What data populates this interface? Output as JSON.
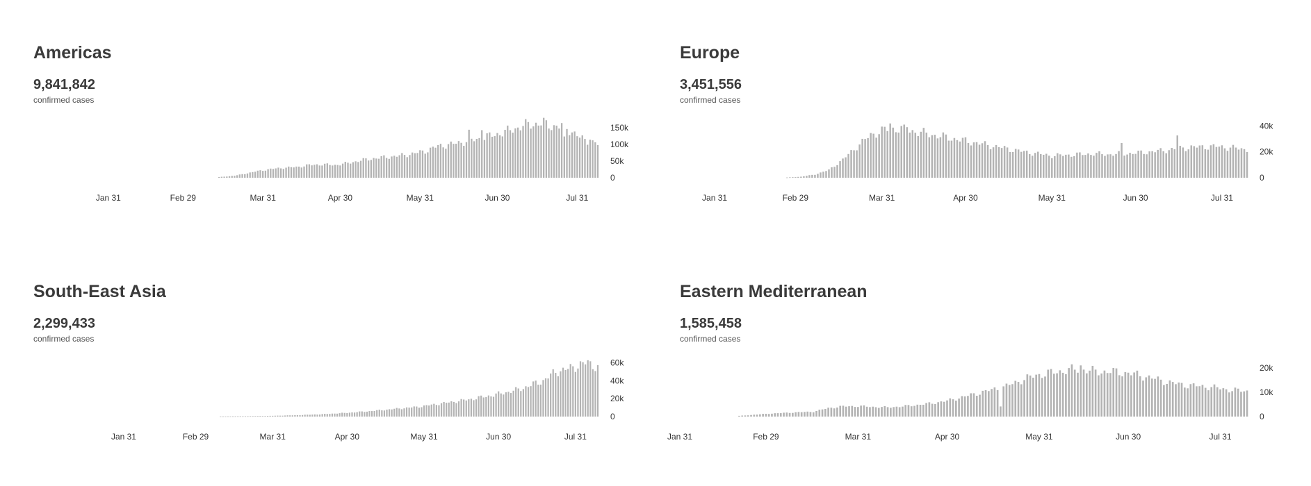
{
  "colors": {
    "bar": "#b3b3b3",
    "text": "#3a3a3a"
  },
  "chart_data": [
    {
      "type": "bar",
      "title": "Americas",
      "total": "9,841,842",
      "caption": "confirmed cases",
      "x_ticks": [
        "Jan 31",
        "Feb 29",
        "Mar 31",
        "Apr 30",
        "May 31",
        "Jun 30",
        "Jul 31"
      ],
      "y_ticks": [
        "0",
        "50k",
        "100k",
        "150k"
      ],
      "ylim": [
        0,
        175000
      ],
      "grid": false,
      "x_range": [
        "Jan 10",
        "Aug 8"
      ],
      "series": [
        {
          "x_start": "Mar 14",
          "x_end": "Aug 8",
          "anchors": [
            [
              0,
              2000
            ],
            [
              6,
              6000
            ],
            [
              10,
              12000
            ],
            [
              15,
              20000
            ],
            [
              20,
              26000
            ],
            [
              25,
              30000
            ],
            [
              30,
              32000
            ],
            [
              35,
              38000
            ],
            [
              40,
              40000
            ],
            [
              45,
              38000
            ],
            [
              50,
              44000
            ],
            [
              55,
              52000
            ],
            [
              60,
              58000
            ],
            [
              65,
              62000
            ],
            [
              70,
              66000
            ],
            [
              75,
              72000
            ],
            [
              80,
              80000
            ],
            [
              85,
              95000
            ],
            [
              90,
              100000
            ],
            [
              95,
              108000
            ],
            [
              100,
              115000
            ],
            [
              105,
              125000
            ],
            [
              110,
              135000
            ],
            [
              115,
              148000
            ],
            [
              120,
              160000
            ],
            [
              125,
              162000
            ],
            [
              130,
              155000
            ],
            [
              135,
              150000
            ],
            [
              140,
              120000
            ],
            [
              147,
              100000
            ]
          ],
          "spikes": [
            [
              97,
              1.3
            ],
            [
              102,
              1.2
            ],
            [
              126,
              1.12
            ],
            [
              133,
              1.08
            ],
            [
              134,
              0.82
            ],
            [
              144,
              1.05
            ]
          ]
        }
      ]
    },
    {
      "type": "bar",
      "title": "Europe",
      "total": "3,451,556",
      "caption": "confirmed cases",
      "x_ticks": [
        "Jan 31",
        "Feb 29",
        "Mar 31",
        "Apr 30",
        "May 31",
        "Jun 30",
        "Jul 31"
      ],
      "y_ticks": [
        "0",
        "20k",
        "40k"
      ],
      "ylim": [
        0,
        45000
      ],
      "grid": false,
      "x_range": [
        "Jan 26",
        "Aug 9"
      ],
      "series": [
        {
          "x_start": "Feb 26",
          "x_end": "Aug 9",
          "anchors": [
            [
              0,
              200
            ],
            [
              5,
              800
            ],
            [
              10,
              2500
            ],
            [
              15,
              6000
            ],
            [
              20,
              14000
            ],
            [
              25,
              24000
            ],
            [
              30,
              33000
            ],
            [
              35,
              37000
            ],
            [
              40,
              38000
            ],
            [
              45,
              36000
            ],
            [
              50,
              34000
            ],
            [
              55,
              32000
            ],
            [
              60,
              30000
            ],
            [
              65,
              28000
            ],
            [
              70,
              26000
            ],
            [
              75,
              24000
            ],
            [
              80,
              22000
            ],
            [
              85,
              20000
            ],
            [
              90,
              18500
            ],
            [
              95,
              17000
            ],
            [
              100,
              17500
            ],
            [
              105,
              18000
            ],
            [
              110,
              18500
            ],
            [
              115,
              18000
            ],
            [
              120,
              18500
            ],
            [
              125,
              19000
            ],
            [
              130,
              20000
            ],
            [
              135,
              21000
            ],
            [
              140,
              22500
            ],
            [
              145,
              23500
            ],
            [
              150,
              24000
            ],
            [
              155,
              24000
            ],
            [
              160,
              23000
            ],
            [
              164,
              22000
            ]
          ],
          "spikes": [
            [
              37,
              1.12
            ],
            [
              43,
              1.06
            ],
            [
              120,
              1.45
            ],
            [
              140,
              1.45
            ]
          ]
        }
      ]
    },
    {
      "type": "bar",
      "title": "South-East Asia",
      "total": "2,299,433",
      "caption": "confirmed cases",
      "x_ticks": [
        "Jan 31",
        "Feb 29",
        "Mar 31",
        "Apr 30",
        "May 31",
        "Jun 30",
        "Jul 31"
      ],
      "y_ticks": [
        "0",
        "20k",
        "40k",
        "60k"
      ],
      "ylim": [
        0,
        65000
      ],
      "grid": false,
      "x_range": [
        "Jan 3",
        "Aug 9"
      ],
      "series": [
        {
          "x_start": "Mar 10",
          "x_end": "Aug 9",
          "anchors": [
            [
              0,
              100
            ],
            [
              10,
              400
            ],
            [
              20,
              800
            ],
            [
              30,
              1500
            ],
            [
              40,
              2500
            ],
            [
              50,
              4000
            ],
            [
              60,
              6000
            ],
            [
              70,
              8500
            ],
            [
              80,
              11000
            ],
            [
              90,
              15000
            ],
            [
              100,
              19000
            ],
            [
              110,
              24000
            ],
            [
              120,
              30000
            ],
            [
              130,
              40000
            ],
            [
              135,
              50000
            ],
            [
              140,
              53000
            ],
            [
              145,
              58000
            ],
            [
              148,
              60000
            ],
            [
              152,
              55000
            ]
          ],
          "spikes": []
        }
      ]
    },
    {
      "type": "bar",
      "title": "Eastern Mediterranean",
      "total": "1,585,458",
      "caption": "confirmed cases",
      "x_ticks": [
        "Jan 31",
        "Feb 29",
        "Mar 31",
        "Apr 30",
        "May 31",
        "Jun 30",
        "Jul 31"
      ],
      "y_ticks": [
        "0",
        "10k",
        "20k"
      ],
      "ylim": [
        0,
        24000
      ],
      "grid": false,
      "x_range": [
        "Jan 31",
        "Aug 9"
      ],
      "series": [
        {
          "x_start": "Feb 20",
          "x_end": "Aug 9",
          "anchors": [
            [
              0,
              300
            ],
            [
              10,
              1200
            ],
            [
              20,
              1800
            ],
            [
              25,
              2000
            ],
            [
              30,
              3500
            ],
            [
              35,
              4200
            ],
            [
              40,
              4300
            ],
            [
              45,
              4000
            ],
            [
              50,
              3800
            ],
            [
              55,
              4200
            ],
            [
              60,
              4800
            ],
            [
              65,
              5500
            ],
            [
              70,
              6500
            ],
            [
              75,
              8000
            ],
            [
              80,
              9500
            ],
            [
              85,
              11000
            ],
            [
              90,
              12500
            ],
            [
              95,
              15000
            ],
            [
              100,
              17000
            ],
            [
              105,
              18000
            ],
            [
              110,
              19000
            ],
            [
              115,
              19500
            ],
            [
              120,
              18500
            ],
            [
              125,
              18500
            ],
            [
              130,
              18000
            ],
            [
              135,
              17000
            ],
            [
              140,
              15500
            ],
            [
              145,
              14000
            ],
            [
              150,
              13000
            ],
            [
              155,
              12500
            ],
            [
              160,
              12000
            ],
            [
              165,
              11000
            ],
            [
              171,
              10500
            ]
          ],
          "spikes": [
            [
              88,
              0.35
            ],
            [
              112,
              1.12
            ],
            [
              115,
              1.08
            ]
          ]
        }
      ]
    }
  ]
}
